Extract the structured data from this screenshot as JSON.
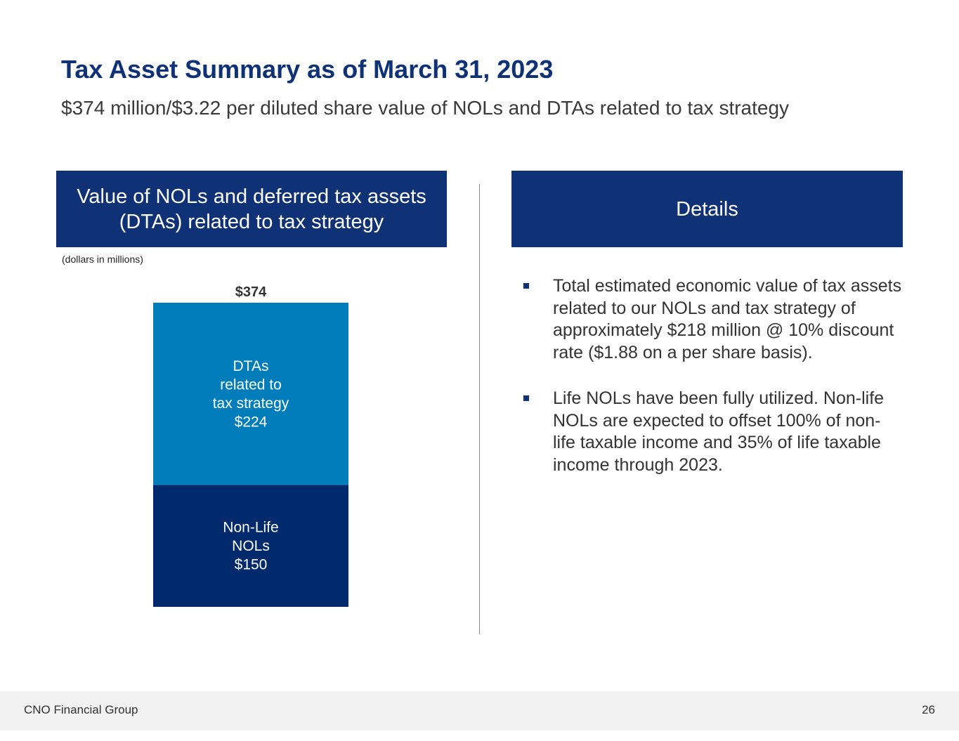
{
  "page": {
    "title": "Tax Asset Summary as of March 31, 2023",
    "subtitle": "$374 million/$3.22 per diluted share value of NOLs and DTAs related to tax strategy"
  },
  "left_panel": {
    "header_lines": [
      "Value of NOLs and deferred tax assets",
      "(DTAs) related to tax strategy"
    ],
    "units_note": "(dollars in millions)"
  },
  "right_panel": {
    "header": "Details",
    "bullets": [
      "Total estimated economic value of tax assets related to our NOLs and tax strategy of approximately $218 million @ 10% discount rate ($1.88 on a per share basis).",
      "Life NOLs have been fully utilized. Non-life NOLs are expected to offset 100% of non-life taxable income and 35% of life taxable income through 2023."
    ]
  },
  "chart_data": {
    "type": "bar",
    "stacked": true,
    "categories": [
      ""
    ],
    "total_label": "$374",
    "total": 374,
    "series": [
      {
        "name": "Non-Life NOLs",
        "values": [
          150
        ],
        "label_lines": [
          "Non-Life",
          "NOLs",
          "$150"
        ],
        "color": "#002a6c"
      },
      {
        "name": "DTAs related to tax strategy",
        "values": [
          224
        ],
        "label_lines": [
          "DTAs",
          "related to",
          "tax strategy",
          "$224"
        ],
        "color": "#007dba"
      }
    ],
    "ylim": [
      0,
      374
    ],
    "grid": false,
    "legend": "none"
  },
  "footer": {
    "company": "CNO Financial Group",
    "page_number": "26"
  },
  "colors": {
    "title": "#0f3176",
    "header_bg": "#0f3176",
    "bar_bottom": "#002a6c",
    "bar_top": "#007dba",
    "footer_bg": "#f2f2f2"
  }
}
